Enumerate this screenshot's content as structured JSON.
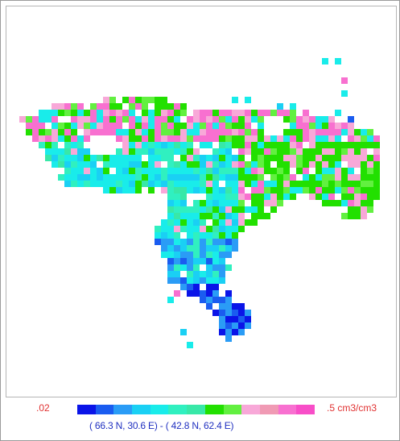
{
  "legend": {
    "min_label": ".02",
    "max_label": ".5 cm3/cm3",
    "colors": [
      "#0a14e8",
      "#1a5cf0",
      "#2a9cf6",
      "#1ad0f4",
      "#19ecea",
      "#30f0c0",
      "#38e8a8",
      "#22e000",
      "#62f040",
      "#f8a8d8",
      "#f09ab4",
      "#f870d0",
      "#f84ec8"
    ]
  },
  "extent_label": "( 66.3 N,  30.6 E) - ( 42.8 N,  62.4 E)"
}
